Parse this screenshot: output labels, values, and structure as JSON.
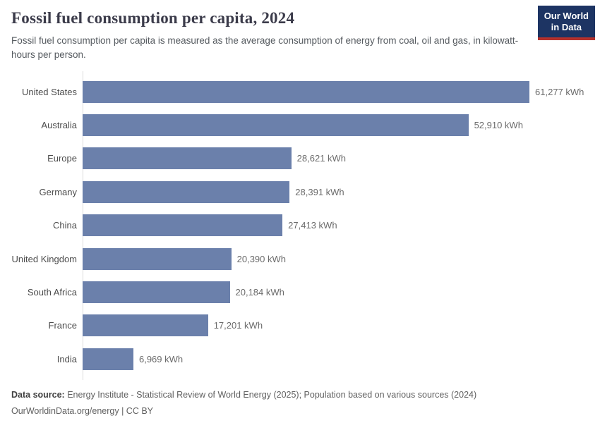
{
  "header": {
    "title": "Fossil fuel consumption per capita, 2024",
    "subtitle": "Fossil fuel consumption per capita is measured as the average consumption of energy from coal, oil and gas, in kilowatt-hours per person.",
    "logo": {
      "line1": "Our World",
      "line2": "in Data",
      "bg_color": "#1d3463",
      "accent_color": "#b5312c"
    }
  },
  "chart_data": {
    "type": "bar",
    "orientation": "horizontal",
    "title": "Fossil fuel consumption per capita, 2024",
    "unit": "kWh",
    "categories": [
      "United States",
      "Australia",
      "Europe",
      "Germany",
      "China",
      "United Kingdom",
      "South Africa",
      "France",
      "India"
    ],
    "values": [
      61277,
      52910,
      28621,
      28391,
      27413,
      20390,
      20184,
      17201,
      6969
    ],
    "value_labels": [
      "61,277 kWh",
      "52,910 kWh",
      "28,621 kWh",
      "28,391 kWh",
      "27,413 kWh",
      "20,390 kWh",
      "20,184 kWh",
      "17,201 kWh",
      "6,969 kWh"
    ],
    "xlim": [
      0,
      61277
    ],
    "grid": false,
    "legend": "none",
    "bar_color": "#6b80ab",
    "axis_line_color": "#dcdcdc"
  },
  "footer": {
    "source_label": "Data source:",
    "source_text": " Energy Institute - Statistical Review of World Energy (2025); Population based on various sources (2024)",
    "link_text": "OurWorldinData.org/energy | CC BY"
  }
}
